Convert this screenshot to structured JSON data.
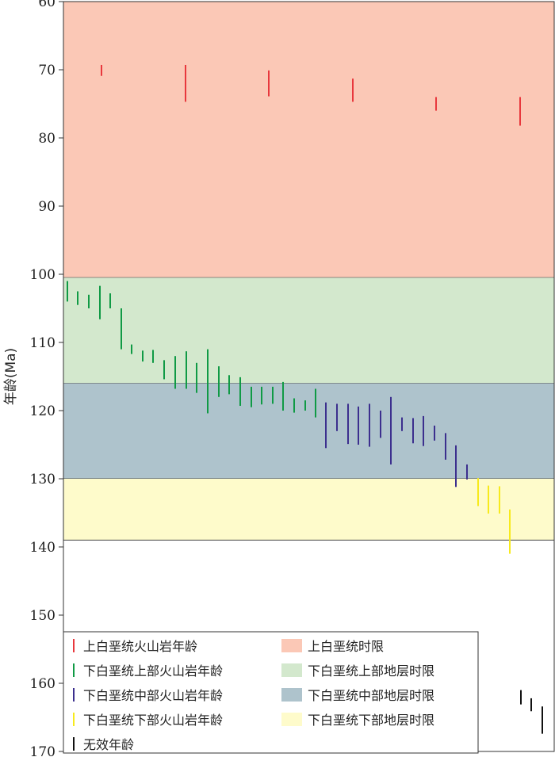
{
  "chart_data": {
    "type": "error_bar",
    "ylabel": "年龄(Ma)",
    "ylim": [
      60,
      170
    ],
    "y_inverted": true,
    "y_ticks": [
      60,
      70,
      80,
      90,
      100,
      110,
      120,
      130,
      140,
      150,
      160,
      170
    ],
    "grid": false,
    "bands": [
      {
        "name": "上白垩统时限",
        "from": 60,
        "to": 100.5,
        "color": "#fbc8b6"
      },
      {
        "name": "下白垩统上部地层时限",
        "from": 100.5,
        "to": 116,
        "color": "#d3e8cd"
      },
      {
        "name": "下白垩统中部地层时限",
        "from": 116,
        "to": 130,
        "color": "#aec3cc"
      },
      {
        "name": "下白垩统下部地层时限",
        "from": 130,
        "to": 139,
        "color": "#fefbcb"
      }
    ],
    "series": [
      {
        "name": "上白垩统火山岩年龄",
        "color": "#e8383d",
        "bars": [
          [
            69.3,
            70.9
          ],
          [
            69.3,
            74.7
          ],
          [
            70.1,
            73.9
          ],
          [
            71.3,
            74.7
          ],
          [
            74.0,
            76.0
          ],
          [
            74.0,
            78.2
          ]
        ]
      },
      {
        "name": "下白垩统上部火山岩年龄",
        "color": "#109a45",
        "bars": [
          [
            101.0,
            104.0
          ],
          [
            102.5,
            104.5
          ],
          [
            103.0,
            105.0
          ],
          [
            101.7,
            106.6
          ],
          [
            102.8,
            105.0
          ],
          [
            105.0,
            111.0
          ],
          [
            110.3,
            111.7
          ],
          [
            111.2,
            112.8
          ],
          [
            111.1,
            113.0
          ],
          [
            112.6,
            115.4
          ],
          [
            112.0,
            116.8
          ],
          [
            111.3,
            116.8
          ],
          [
            113.0,
            117.4
          ],
          [
            111.0,
            120.4
          ],
          [
            113.5,
            118.0
          ],
          [
            114.8,
            117.6
          ],
          [
            115.1,
            119.3
          ],
          [
            116.5,
            119.5
          ],
          [
            116.5,
            119.1
          ],
          [
            116.5,
            119.0
          ],
          [
            115.8,
            120.0
          ],
          [
            118.2,
            120.3
          ],
          [
            118.5,
            120.0
          ],
          [
            116.8,
            121.0
          ]
        ]
      },
      {
        "name": "下白垩统中部火山岩年龄",
        "color": "#3c2f8e",
        "bars": [
          [
            118.8,
            125.5
          ],
          [
            119.0,
            123.0
          ],
          [
            119.0,
            124.9
          ],
          [
            119.4,
            125.0
          ],
          [
            119.0,
            125.3
          ],
          [
            120.0,
            124.0
          ],
          [
            118.0,
            127.9
          ],
          [
            121.0,
            123.0
          ],
          [
            121.1,
            124.8
          ],
          [
            120.8,
            125.2
          ],
          [
            122.2,
            124.4
          ],
          [
            123.3,
            127.2
          ],
          [
            125.1,
            131.2
          ],
          [
            127.9,
            130.1
          ]
        ]
      },
      {
        "name": "下白垩统下部火山岩年龄",
        "color": "#f7ea1c",
        "bars": [
          [
            129.9,
            134.0
          ],
          [
            131.0,
            135.1
          ],
          [
            131.1,
            135.1
          ],
          [
            134.5,
            141.0
          ]
        ]
      },
      {
        "name": "无效年龄",
        "color": "#111111",
        "bars": [
          [
            161.0,
            163.1
          ],
          [
            162.2,
            164.1
          ],
          [
            163.4,
            167.4
          ]
        ]
      }
    ],
    "legend": {
      "placement": "bottom-left",
      "items": [
        {
          "kind": "bar",
          "label": "上白垩统火山岩年龄",
          "color": "#e8383d"
        },
        {
          "kind": "band",
          "label": "上白垩统时限",
          "color": "#fbc8b6"
        },
        {
          "kind": "bar",
          "label": "下白垩统上部火山岩年龄",
          "color": "#109a45"
        },
        {
          "kind": "band",
          "label": "下白垩统上部地层时限",
          "color": "#d3e8cd"
        },
        {
          "kind": "bar",
          "label": "下白垩统中部火山岩年龄",
          "color": "#3c2f8e"
        },
        {
          "kind": "band",
          "label": "下白垩统中部地层时限",
          "color": "#aec3cc"
        },
        {
          "kind": "bar",
          "label": "下白垩统下部火山岩年龄",
          "color": "#f7ea1c"
        },
        {
          "kind": "band",
          "label": "下白垩统下部地层时限",
          "color": "#fefbcb"
        },
        {
          "kind": "bar",
          "label": "无效年龄",
          "color": "#111111"
        }
      ]
    }
  }
}
